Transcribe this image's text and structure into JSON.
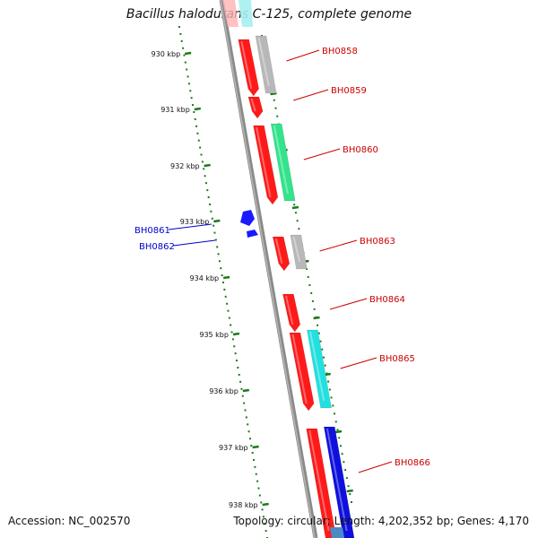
{
  "title": "Bacillus halodurans C-125, complete genome",
  "footer": {
    "accession": "Accession: NC_002570",
    "summary": "Topology: circular; Length: 4,202,352 bp; Genes: 4,170"
  },
  "colors": {
    "backbone": "#7f7f7f",
    "tick": "#1a7a1a",
    "label_forward": "#cc0000",
    "label_reverse": "#0000cc"
  },
  "ticks": [
    "930 kbp",
    "931 kbp",
    "932 kbp",
    "933 kbp",
    "934 kbp",
    "935 kbp",
    "936 kbp",
    "937 kbp",
    "938 kbp"
  ],
  "genes_forward": [
    {
      "name": "BH0858",
      "color": "#ff1a1a",
      "partner": "#b8b8b8"
    },
    {
      "name": "BH0859",
      "color": "#ff1a1a",
      "partner": null
    },
    {
      "name": "BH0860",
      "color": "#ff1a1a",
      "partner": "#33e38c"
    },
    {
      "name": "BH0863",
      "color": "#ff1a1a",
      "partner": "#b8b8b8"
    },
    {
      "name": "BH0864",
      "color": "#ff1a1a",
      "partner": null
    },
    {
      "name": "BH0865",
      "color": "#ff1a1a",
      "partner": "#22e0e0"
    },
    {
      "name": "BH0866",
      "color": "#ff1a1a",
      "partner": "#1010dd"
    }
  ],
  "genes_reverse": [
    {
      "name": "BH0861",
      "color": "#1a1aff"
    },
    {
      "name": "BH0862",
      "color": "#1a1aff"
    }
  ]
}
